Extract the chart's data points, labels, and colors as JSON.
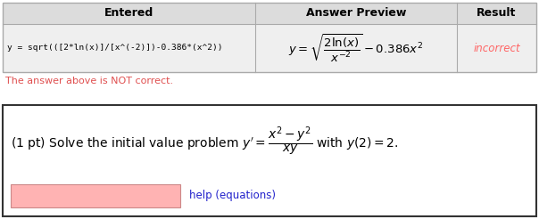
{
  "table_header": [
    "Entered",
    "Answer Preview",
    "Result"
  ],
  "entered_text": "y = sqrt(([2*ln(x)]/[x^(-2)])-0.386*(x^2))",
  "result_text": "incorrect",
  "result_color": "#FF6666",
  "not_correct_text": "The answer above is NOT correct.",
  "not_correct_color": "#E05050",
  "help_text": "help (equations)",
  "help_color": "#2222CC",
  "input_box_color": "#FFB3B3",
  "input_box_border": "#CC8888",
  "background_color": "#FFFFFF",
  "header_bg": "#DCDCDC",
  "data_row_bg": "#EFEFEF",
  "table_border": "#AAAAAA",
  "box_bg": "#FFFFFF",
  "box_border": "#333333"
}
